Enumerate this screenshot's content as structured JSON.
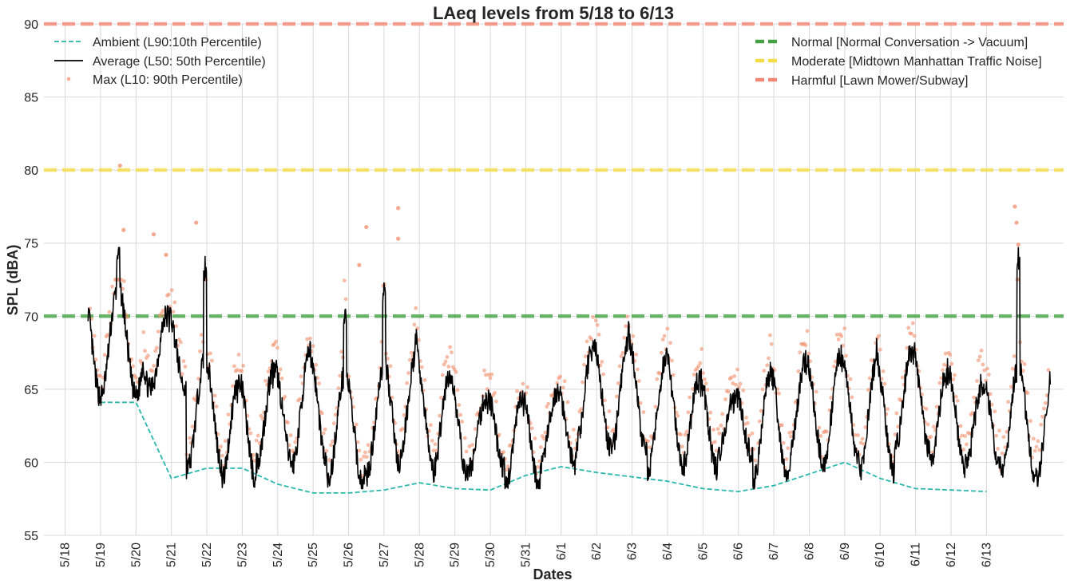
{
  "chart_data": {
    "type": "line",
    "title": "LAeq levels from 5/18 to 6/13",
    "xlabel": "Dates",
    "ylabel": "SPL (dBA)",
    "ylim": [
      55,
      90
    ],
    "yticks": [
      55,
      60,
      65,
      70,
      75,
      80,
      85,
      90
    ],
    "xtick_labels": [
      "5/18",
      "5/19",
      "5/20",
      "5/21",
      "5/22",
      "5/23",
      "5/24",
      "5/25",
      "5/26",
      "5/27",
      "5/28",
      "5/29",
      "5/30",
      "5/31",
      "6/1",
      "6/2",
      "6/3",
      "6/4",
      "6/5",
      "6/6",
      "6/7",
      "6/8",
      "6/9",
      "6/10",
      "6/11",
      "6/12",
      "6/13"
    ],
    "grid": true,
    "legend_left": "top-left",
    "legend_right": "top-right",
    "series": [
      {
        "name": "Ambient (L90:10th Percentile)",
        "style": "dashed-line",
        "color": "#2ab7ac",
        "x": [
          1,
          2,
          3,
          4,
          5,
          6,
          7,
          8,
          9,
          10,
          11,
          12,
          13,
          14,
          15,
          16,
          17,
          18,
          19,
          20,
          21,
          22,
          23,
          24,
          25,
          26
        ],
        "y": [
          64.1,
          64.1,
          58.9,
          59.6,
          59.6,
          58.5,
          57.9,
          57.9,
          58.1,
          58.6,
          58.2,
          58.1,
          59.1,
          59.7,
          59.3,
          59.0,
          58.7,
          58.2,
          58.0,
          58.4,
          59.2,
          60.0,
          58.9,
          58.2,
          58.1,
          58.0
        ]
      },
      {
        "name": "Average (L50: 50th Percentile)",
        "style": "solid-line",
        "color": "#000000",
        "x_start": 0.65,
        "x_end": 27.8,
        "daily_peak_day": [
          1.5,
          2.9,
          3.95,
          4.9,
          5.9,
          6.9,
          7.9,
          9.0,
          9.9,
          10.85,
          11.9,
          12.9,
          13.9,
          14.9,
          15.9,
          16.95,
          17.9,
          18.9,
          19.9,
          20.9,
          21.9,
          22.9,
          23.9,
          24.9,
          25.9,
          26.9
        ],
        "daily_peak_value": [
          74.7,
          70.3,
          73.4,
          65.6,
          66.5,
          68.0,
          70.5,
          71.7,
          68.6,
          66.0,
          64.6,
          64.4,
          64.9,
          68.1,
          69.0,
          67.6,
          65.8,
          64.7,
          66.5,
          67.0,
          67.5,
          67.7,
          67.8,
          66.3,
          65.5,
          74.2
        ],
        "daily_trough_value": [
          64.5,
          65.0,
          59.6,
          58.6,
          60.0,
          59.8,
          58.5,
          59.1,
          59.7,
          59.1,
          59.6,
          58.2,
          59.8,
          61.0,
          60.7,
          59.5,
          59.5,
          60.5,
          58.6,
          60.0,
          60.0,
          59.2,
          60.8,
          59.7,
          59.8,
          58.9
        ]
      },
      {
        "name": "Max (L10: 90th Percentile)",
        "style": "scatter",
        "color": "#f28e6b",
        "notable_points": [
          {
            "x": 1.55,
            "y": 80.3
          },
          {
            "x": 1.65,
            "y": 75.9
          },
          {
            "x": 2.5,
            "y": 75.6
          },
          {
            "x": 2.85,
            "y": 74.2
          },
          {
            "x": 3.7,
            "y": 76.4
          },
          {
            "x": 8.3,
            "y": 73.5
          },
          {
            "x": 8.5,
            "y": 76.1
          },
          {
            "x": 9.4,
            "y": 77.4
          },
          {
            "x": 9.4,
            "y": 75.3
          },
          {
            "x": 26.8,
            "y": 77.5
          },
          {
            "x": 26.85,
            "y": 76.4
          },
          {
            "x": 26.9,
            "y": 74.9
          }
        ]
      },
      {
        "name": "Normal [Normal Conversation -> Vacuum]",
        "style": "thick-dashed-hline",
        "color": "#3a9e3a",
        "y": 70
      },
      {
        "name": "Moderate [Midtown Manhattan Traffic Noise]",
        "style": "thick-dashed-hline",
        "color": "#f5dc3c",
        "y": 80
      },
      {
        "name": "Harmful [Lawn Mower/Subway]",
        "style": "thick-dashed-hline",
        "color": "#f4806b",
        "y": 90
      }
    ]
  }
}
